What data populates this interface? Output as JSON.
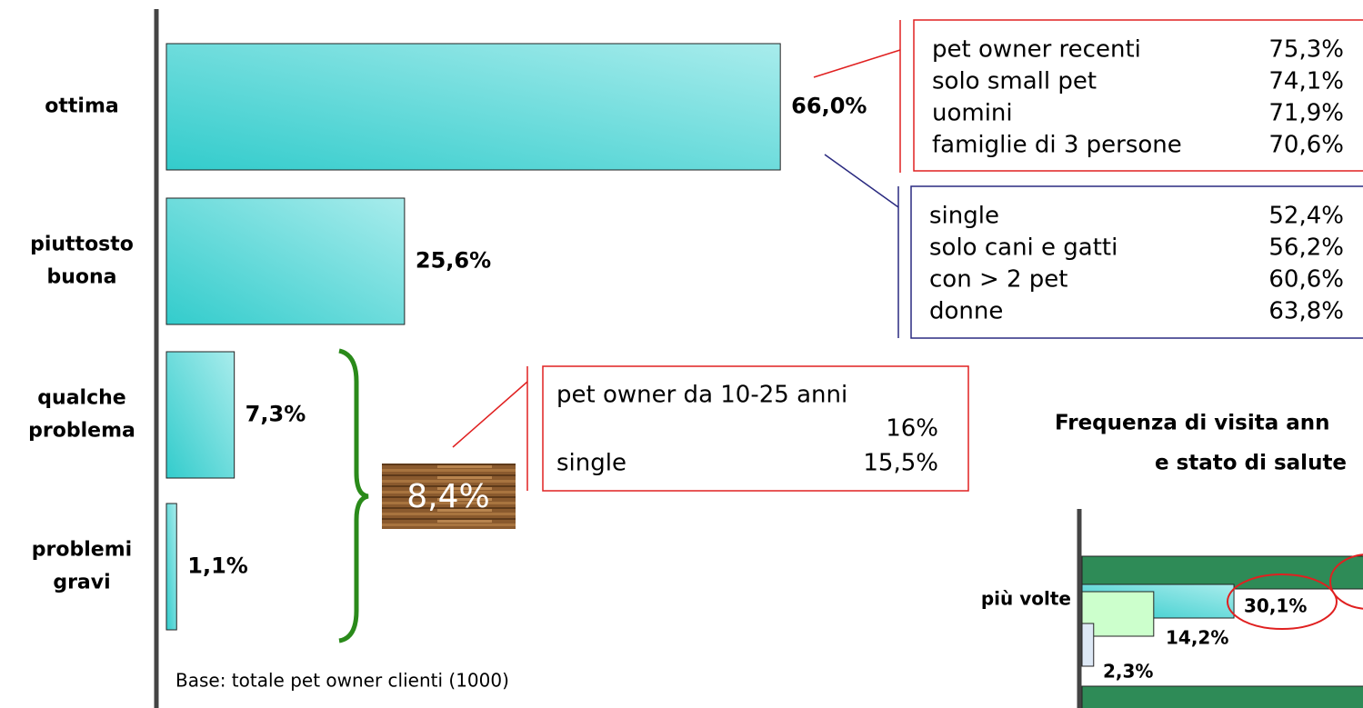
{
  "chart_data": [
    {
      "type": "bar",
      "categories": [
        "ottima",
        "piuttosto buona",
        "qualche problema",
        "problemi gravi"
      ],
      "values": [
        66.0,
        25.6,
        7.3,
        1.1
      ],
      "value_labels": [
        "66,0%",
        "25,6%",
        "7,3%",
        "1,1%"
      ],
      "color": "#3fcfcf",
      "note": "Base: totale pet owner clienti (1000)"
    },
    {
      "type": "bar",
      "title": [
        "Frequenza di visita ann",
        "e stato di salute"
      ],
      "categories": [
        "più volte",
        null
      ],
      "series": [
        {
          "color": "#2e8b57",
          "values": [
            57,
            57
          ]
        },
        {
          "color": "#3fcfcf",
          "values": [
            30.1,
            null
          ],
          "value_labels": [
            "30,1%",
            null
          ]
        },
        {
          "color": "#ccffcc",
          "values": [
            14.2,
            null
          ],
          "value_labels": [
            "14,2%",
            null
          ]
        },
        {
          "color": "#dde8f5",
          "values": [
            2.3,
            null
          ],
          "value_labels": [
            "2,3%",
            null
          ]
        }
      ]
    }
  ],
  "callouts": [
    {
      "rows": [
        {
          "label": "pet owner recenti",
          "value": "75,3%"
        },
        {
          "label": "solo small pet",
          "value": "74,1%"
        },
        {
          "label": "uomini",
          "value": "71,9%"
        },
        {
          "label": "famiglie di 3 persone",
          "value": "70,6%"
        }
      ]
    },
    {
      "rows": [
        {
          "label": "single",
          "value": "52,4%"
        },
        {
          "label": "solo cani e gatti",
          "value": "56,2%"
        },
        {
          "label": "con > 2 pet",
          "value": "60,6%"
        },
        {
          "label": "donne",
          "value": "63,8%"
        }
      ]
    },
    {
      "rows": [
        {
          "label": "pet owner da 10-25 anni",
          "value": "16%"
        },
        {
          "label": "single",
          "value": "15,5%"
        }
      ]
    }
  ],
  "group_total": "8,4%"
}
